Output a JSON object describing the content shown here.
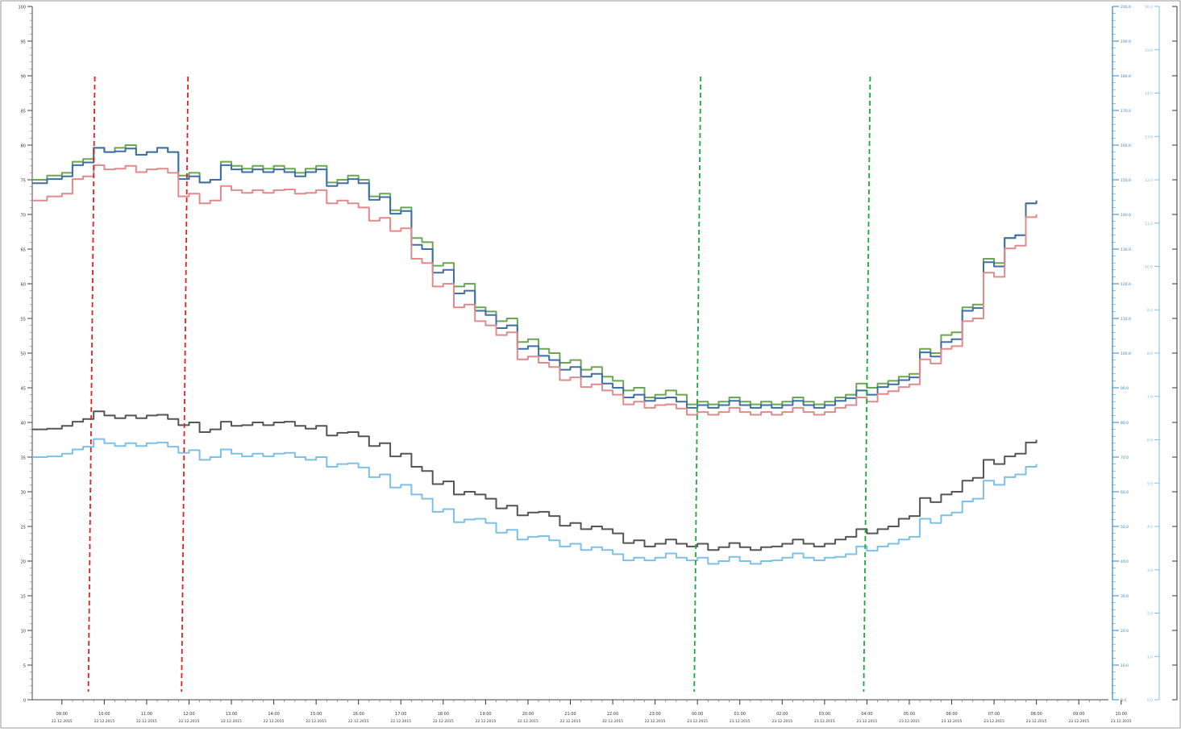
{
  "chart_data": {
    "type": "line",
    "title": "",
    "xlabel": "",
    "ylabel": "",
    "grid": false,
    "legend": "none",
    "x_ticks": [
      {
        "time": "09:00",
        "date": "22.12.2015"
      },
      {
        "time": "10:00",
        "date": "22.12.2015"
      },
      {
        "time": "11:00",
        "date": "22.12.2015"
      },
      {
        "time": "12:00",
        "date": "22.12.2015"
      },
      {
        "time": "13:00",
        "date": "22.12.2015"
      },
      {
        "time": "14:00",
        "date": "22.12.2015"
      },
      {
        "time": "15:00",
        "date": "22.12.2015"
      },
      {
        "time": "16:00",
        "date": "22.12.2015"
      },
      {
        "time": "17:00",
        "date": "22.12.2015"
      },
      {
        "time": "18:00",
        "date": "22.12.2015"
      },
      {
        "time": "19:00",
        "date": "22.12.2015"
      },
      {
        "time": "20:00",
        "date": "22.12.2015"
      },
      {
        "time": "21:00",
        "date": "22.12.2015"
      },
      {
        "time": "22:00",
        "date": "22.12.2015"
      },
      {
        "time": "23:00",
        "date": "22.12.2015"
      },
      {
        "time": "00:00",
        "date": "23.12.2015"
      },
      {
        "time": "01:00",
        "date": "23.12.2015"
      },
      {
        "time": "02:00",
        "date": "23.12.2015"
      },
      {
        "time": "03:00",
        "date": "23.12.2015"
      },
      {
        "time": "04:00",
        "date": "23.12.2015"
      },
      {
        "time": "05:00",
        "date": "23.12.2015"
      },
      {
        "time": "06:00",
        "date": "23.12.2015"
      },
      {
        "time": "07:00",
        "date": "23.12.2015"
      },
      {
        "time": "08:00",
        "date": "23.12.2015"
      },
      {
        "time": "09:00",
        "date": "23.12.2015"
      },
      {
        "time": "10:00",
        "date": "23.12.2015"
      }
    ],
    "xlim_hours": [
      8.3,
      33.7
    ],
    "y_left": {
      "ylim": [
        0,
        100
      ],
      "ticks": [
        "0",
        "5",
        "10",
        "15",
        "20",
        "25",
        "30",
        "35",
        "40",
        "45",
        "50",
        "55",
        "60",
        "65",
        "70",
        "75",
        "80",
        "85",
        "90",
        "95",
        "100"
      ]
    },
    "y_right_1": {
      "ylim": [
        0,
        200
      ],
      "ticks": [
        "0.0",
        "10.0",
        "20.0",
        "30.0",
        "40.0",
        "50.0",
        "60.0",
        "70.0",
        "80.0",
        "90.0",
        "100.0",
        "110.0",
        "120.0",
        "130.0",
        "140.0",
        "150.0",
        "160.0",
        "170.0",
        "180.0",
        "190.0",
        "200.0"
      ],
      "color": "#2f86c8"
    },
    "y_right_2": {
      "ylim": [
        0,
        16
      ],
      "ticks": [
        "0.0",
        "1.0",
        "2.0",
        "3.0",
        "4.0",
        "5.0",
        "6.0",
        "7.0",
        "8.0",
        "9.0",
        "10.0",
        "11.0",
        "12.0",
        "13.0",
        "14.0",
        "15.0",
        "16.0"
      ],
      "color": "#7cc0e8"
    },
    "series": [
      {
        "color": "#6aa84f",
        "x": [
          8.3,
          9.0,
          9.5,
          10.0,
          10.5,
          11.0,
          11.5,
          12.0,
          12.5,
          13.0,
          13.5,
          14.0,
          14.5,
          15.0,
          15.5,
          16.0,
          16.5,
          17.0,
          17.5,
          18.0,
          18.5,
          19.0,
          19.5,
          20.0,
          20.5,
          21.0,
          21.5,
          22.0,
          22.5,
          23.0,
          23.5,
          24.0,
          24.5,
          25.0,
          25.5,
          26.0,
          26.5,
          27.0,
          27.5,
          28.0,
          28.5,
          29.0,
          29.5,
          30.0,
          30.5,
          31.0,
          31.5,
          32.0
        ],
        "y": [
          75,
          76,
          78,
          79,
          80,
          79,
          79,
          76,
          75,
          77,
          77,
          77,
          76,
          77,
          75,
          75,
          73,
          71,
          66,
          63,
          60,
          56,
          55,
          52,
          50,
          49,
          48,
          46,
          45,
          44,
          44,
          43,
          43,
          43,
          43,
          43,
          43,
          43,
          44,
          45,
          46,
          47,
          50,
          53,
          57,
          63,
          67,
          72
        ]
      },
      {
        "color": "#3d6ea8",
        "x": [
          8.3,
          9.0,
          9.5,
          10.0,
          10.5,
          11.0,
          11.5,
          12.0,
          12.5,
          13.0,
          13.5,
          14.0,
          14.5,
          15.0,
          15.5,
          16.0,
          16.5,
          17.0,
          17.5,
          18.0,
          18.5,
          19.0,
          19.5,
          20.0,
          20.5,
          21.0,
          21.5,
          22.0,
          22.5,
          23.0,
          23.5,
          24.0,
          24.5,
          25.0,
          25.5,
          26.0,
          26.5,
          27.0,
          27.5,
          28.0,
          28.5,
          29.0,
          29.5,
          30.0,
          30.5,
          31.0,
          31.5,
          32.0
        ],
        "y": [
          74.5,
          75.5,
          77.5,
          79,
          79.5,
          79,
          79,
          75.5,
          75,
          76.5,
          76.5,
          76.5,
          75.5,
          76.5,
          74.5,
          74.5,
          72.5,
          70.5,
          65,
          62,
          59,
          55.5,
          54,
          51,
          49,
          48,
          47,
          45,
          44,
          43.5,
          43,
          42.5,
          42.5,
          42.5,
          42.5,
          42.5,
          42.5,
          42.5,
          43.5,
          44,
          45.5,
          46.5,
          49.5,
          52,
          56.5,
          62.5,
          67,
          72
        ]
      },
      {
        "color": "#e08a8a",
        "x": [
          8.3,
          9.0,
          9.5,
          10.0,
          10.5,
          11.0,
          11.5,
          12.0,
          12.5,
          13.0,
          13.5,
          14.0,
          14.5,
          15.0,
          15.5,
          16.0,
          16.5,
          17.0,
          17.5,
          18.0,
          18.5,
          19.0,
          19.5,
          20.0,
          20.5,
          21.0,
          21.5,
          22.0,
          22.5,
          23.0,
          23.5,
          24.0,
          24.5,
          25.0,
          25.5,
          26.0,
          26.5,
          27.0,
          27.5,
          28.0,
          28.5,
          29.0,
          29.5,
          30.0,
          30.5,
          31.0,
          31.5,
          32.0
        ],
        "y": [
          72,
          73,
          75.5,
          76.5,
          77,
          76.5,
          76,
          73,
          72,
          73.5,
          73.5,
          73.5,
          73,
          73.5,
          72,
          71,
          69.5,
          68,
          63,
          60,
          57,
          54,
          53,
          49.5,
          48,
          46.5,
          45.5,
          44,
          43,
          42.5,
          42,
          41.5,
          41.5,
          41.5,
          41.5,
          41.5,
          41.5,
          41.5,
          42.5,
          43,
          44.5,
          45.5,
          48.5,
          51,
          55,
          61,
          65.5,
          70
        ]
      },
      {
        "color": "#555555",
        "x": [
          8.3,
          9.0,
          9.5,
          10.0,
          10.5,
          11.0,
          11.5,
          12.0,
          12.5,
          13.0,
          13.5,
          14.0,
          14.5,
          15.0,
          15.5,
          16.0,
          16.5,
          17.0,
          17.5,
          18.0,
          18.5,
          19.0,
          19.5,
          20.0,
          20.5,
          21.0,
          21.5,
          22.0,
          22.5,
          23.0,
          23.5,
          24.0,
          24.5,
          25.0,
          25.5,
          26.0,
          26.5,
          27.0,
          27.5,
          28.0,
          28.5,
          29.0,
          29.5,
          30.0,
          30.5,
          31.0,
          31.5,
          32.0
        ],
        "y": [
          39,
          39.5,
          40.5,
          41,
          41,
          41,
          40.5,
          40,
          39,
          39.5,
          40,
          40,
          39.5,
          39.5,
          38.5,
          38,
          37,
          35.5,
          33,
          31.5,
          30,
          29,
          28,
          27,
          26.5,
          25.5,
          25,
          24,
          23,
          22.5,
          22.5,
          22.5,
          22,
          22,
          22,
          22.5,
          22.5,
          22.5,
          23.5,
          24,
          25,
          26.5,
          28.5,
          30,
          32,
          34,
          35.5,
          37.5
        ]
      },
      {
        "color": "#7cc0e8",
        "x": [
          8.3,
          9.0,
          9.5,
          10.0,
          10.5,
          11.0,
          11.5,
          12.0,
          12.5,
          13.0,
          13.5,
          14.0,
          14.5,
          15.0,
          15.5,
          16.0,
          16.5,
          17.0,
          17.5,
          18.0,
          18.5,
          19.0,
          19.5,
          20.0,
          20.5,
          21.0,
          21.5,
          22.0,
          22.5,
          23.0,
          23.5,
          24.0,
          24.5,
          25.0,
          25.5,
          26.0,
          26.5,
          27.0,
          27.5,
          28.0,
          28.5,
          29.0,
          29.5,
          30.0,
          30.5,
          31.0,
          31.5,
          32.0
        ],
        "y": [
          35,
          35.5,
          36.5,
          37,
          37,
          37,
          36.5,
          36,
          35,
          35.5,
          35.5,
          35.5,
          35,
          35,
          34,
          33.5,
          32.5,
          31,
          29,
          27.5,
          26,
          25.5,
          24.5,
          23.5,
          23,
          22.5,
          22,
          21,
          20.5,
          20.5,
          20.5,
          20.5,
          20,
          20,
          20,
          20.5,
          20.5,
          20.5,
          21,
          21.5,
          22.5,
          23.5,
          25.5,
          27,
          29,
          31,
          32.5,
          34
        ]
      }
    ],
    "annotations": [
      {
        "type": "vertical-dashed",
        "color": "#e02020",
        "x": 9.7
      },
      {
        "type": "vertical-dashed",
        "color": "#e02020",
        "x": 11.9
      },
      {
        "type": "vertical-dashed",
        "color": "#1aa83a",
        "x": 24.0
      },
      {
        "type": "vertical-dashed",
        "color": "#1aa83a",
        "x": 28.0
      }
    ]
  }
}
